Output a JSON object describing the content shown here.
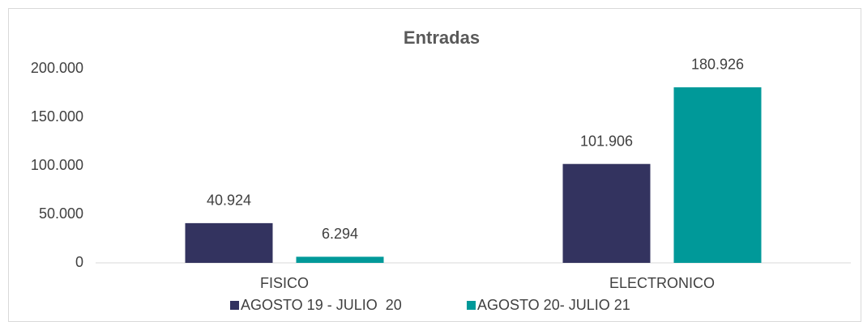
{
  "chart_data": {
    "type": "bar",
    "title": "Entradas",
    "categories": [
      "FISICO",
      "ELECTRONICO"
    ],
    "series": [
      {
        "name": "AGOSTO 19 - JULIO  20",
        "color": "#33335f",
        "values": [
          40924,
          101906
        ],
        "value_labels": [
          "40.924",
          "101.906"
        ]
      },
      {
        "name": "AGOSTO 20- JULIO 21",
        "color": "#009999",
        "values": [
          6294,
          180926
        ],
        "value_labels": [
          "6.294",
          "180.926"
        ]
      }
    ],
    "ylim": [
      0,
      200000
    ],
    "yticks": [
      0,
      {
        "value": 50000,
        "label": "50.000"
      },
      {
        "value": 100000,
        "label": "100.000"
      },
      {
        "value": 150000,
        "label": "150.000"
      },
      {
        "value": 200000,
        "label": "200.000"
      }
    ],
    "grid": false,
    "legend": "bottom"
  }
}
